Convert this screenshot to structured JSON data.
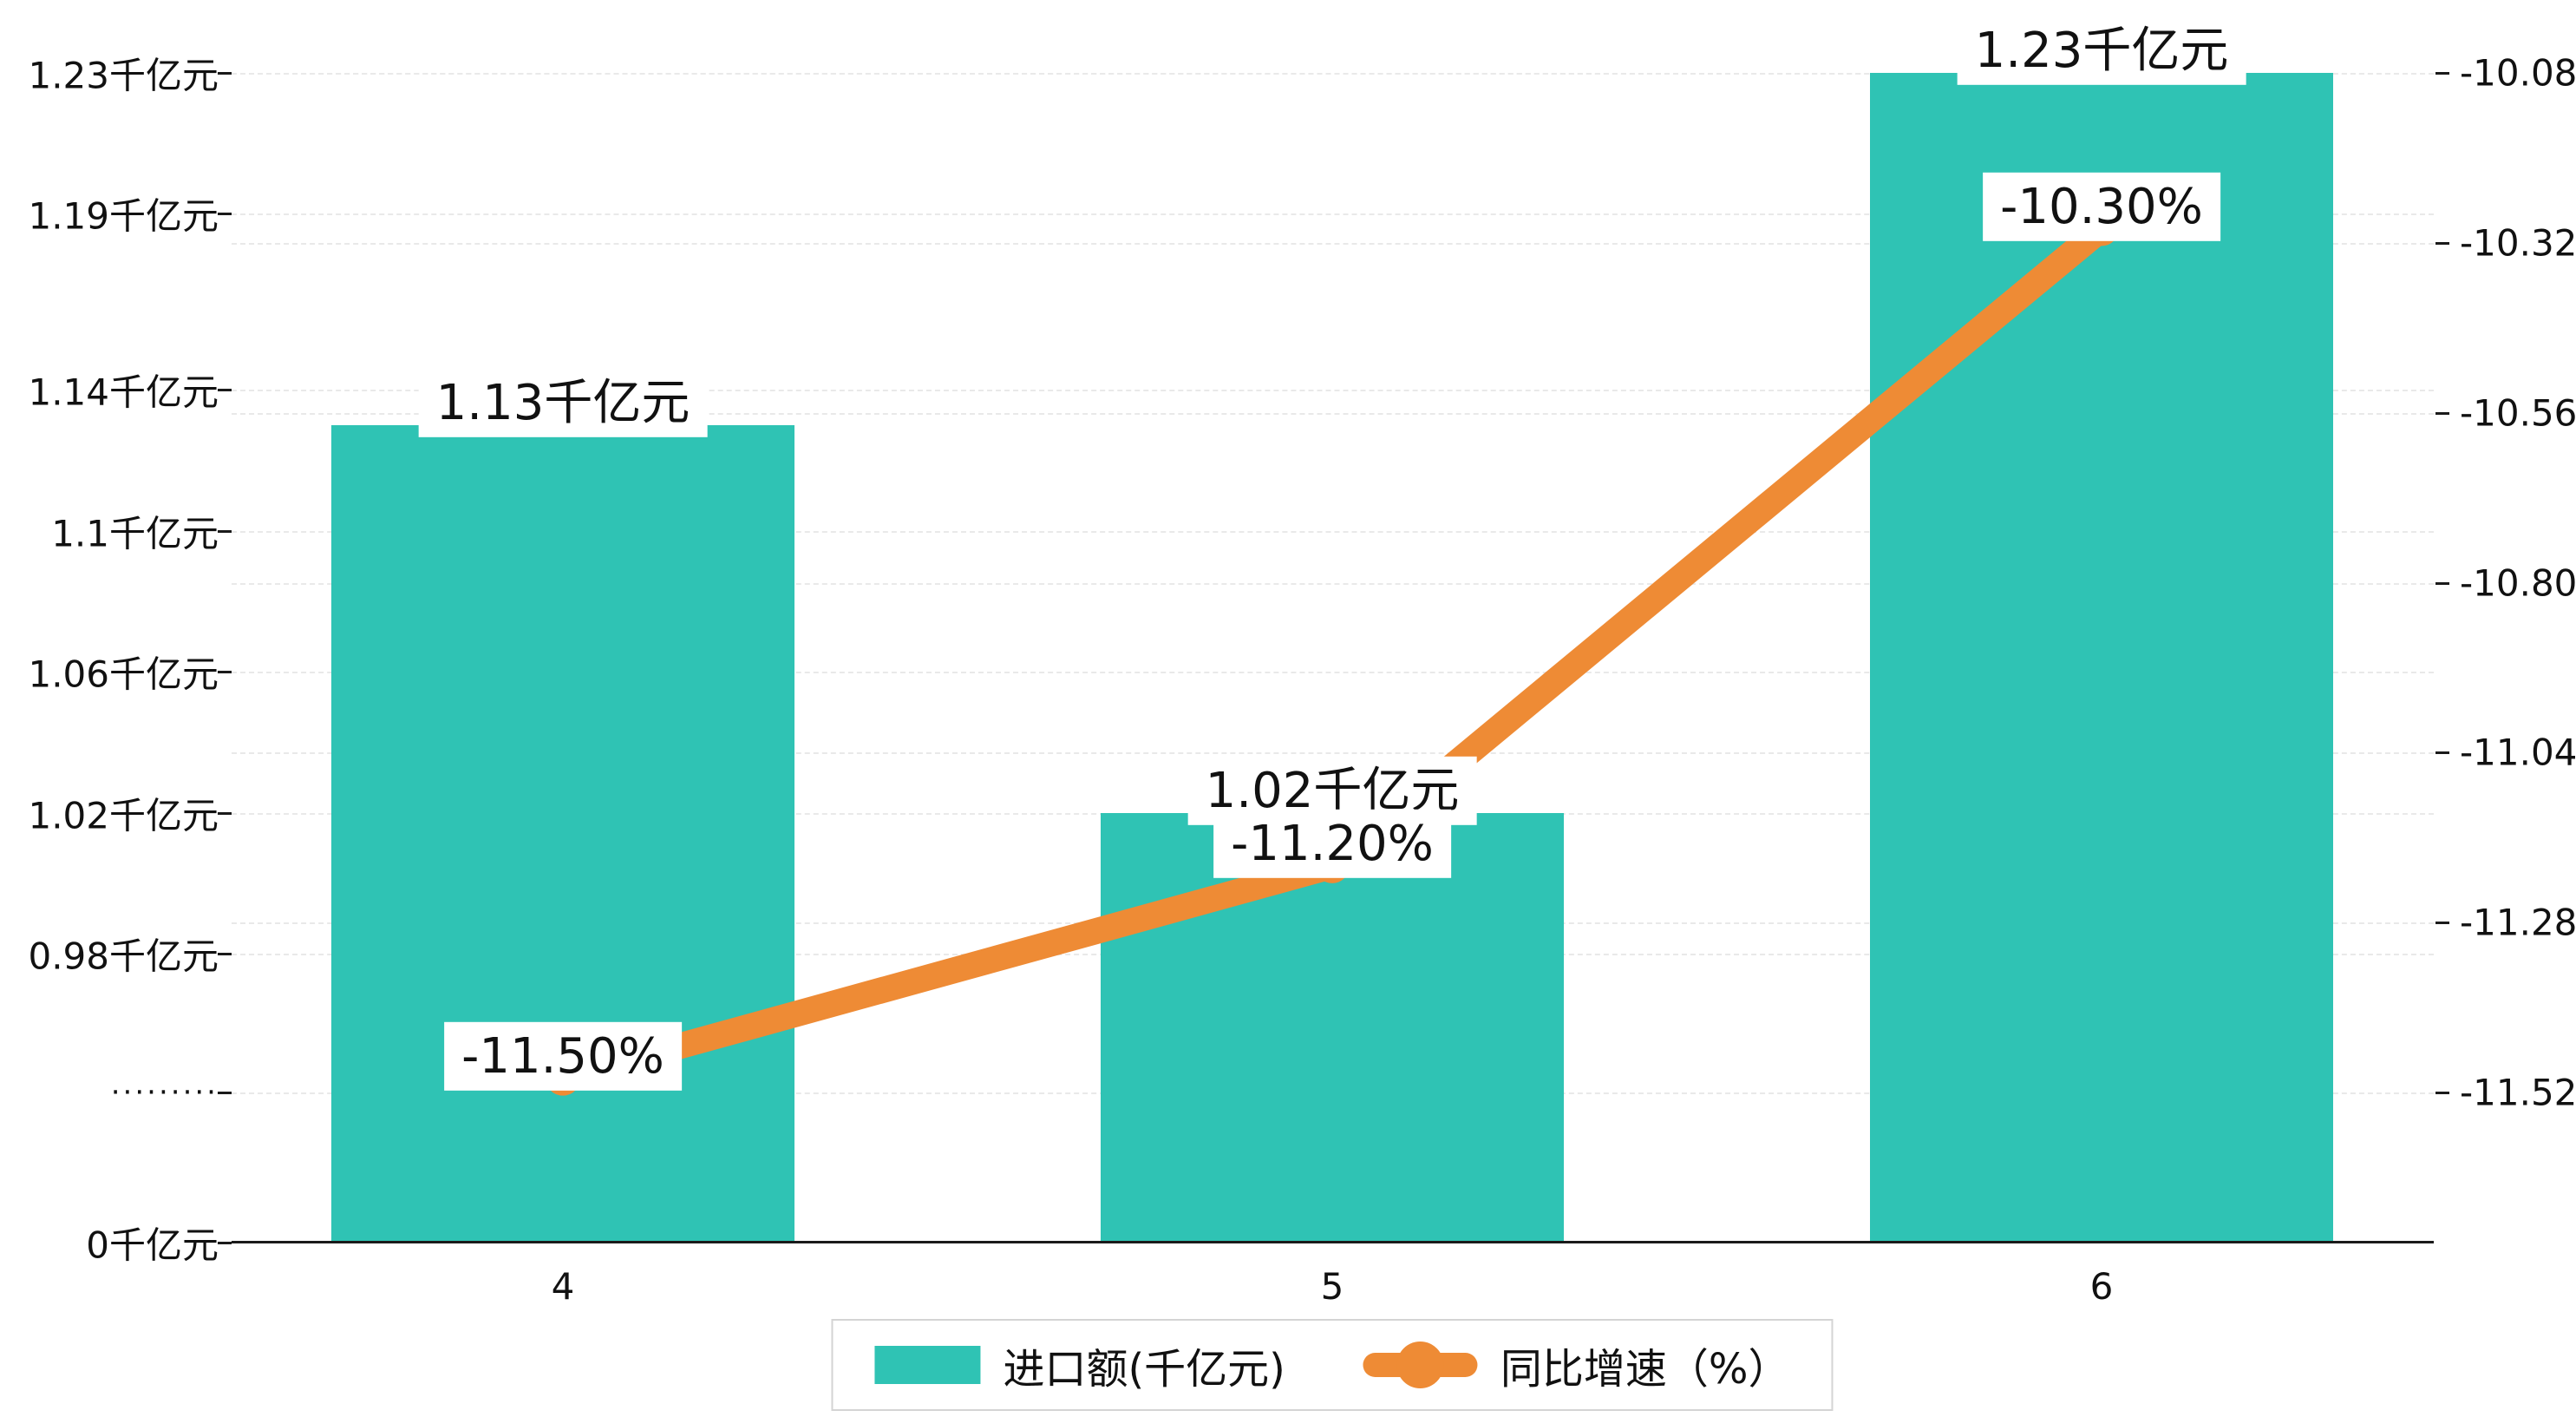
{
  "chart_data": {
    "type": "bar",
    "categories": [
      "4",
      "5",
      "6"
    ],
    "series": [
      {
        "name": "进口额(千亿元)",
        "type": "bar",
        "axis": "left",
        "values": [
          1.13,
          1.02,
          1.23
        ],
        "value_labels": [
          "1.13千亿元",
          "1.02千亿元",
          "1.23千亿元"
        ]
      },
      {
        "name": "同比增速（%）",
        "type": "line",
        "axis": "right",
        "values": [
          -11.5,
          -11.2,
          -10.3
        ],
        "value_labels": [
          "-11.50%",
          "-11.20%",
          "-10.30%"
        ]
      }
    ],
    "left_axis": {
      "unit": "千亿元",
      "broken_axis": true,
      "tick_values": [
        1.23,
        1.19,
        1.14,
        1.1,
        1.06,
        1.02,
        0.98
      ],
      "tick_labels": [
        "1.23千亿元",
        "1.19千亿元",
        "1.14千亿元",
        "1.1千亿元",
        "1.06千亿元",
        "1.02千亿元",
        "0.98千亿元"
      ],
      "break_label": "·········",
      "zero_label": "0千亿元"
    },
    "right_axis": {
      "tick_values": [
        -10.08,
        -10.32,
        -10.56,
        -10.8,
        -11.04,
        -11.28,
        -11.52
      ],
      "tick_labels": [
        "-10.08",
        "-10.32",
        "-10.56",
        "-10.80",
        "-11.04",
        "-11.28",
        "-11.52"
      ]
    },
    "legend": {
      "position": "bottom-center",
      "items": [
        {
          "label": "进口额(千亿元)",
          "marker": "bar"
        },
        {
          "label": "同比增速（%）",
          "marker": "line-dot"
        }
      ]
    },
    "grid": true
  },
  "colors": {
    "bar": "#2fc3b4",
    "line": "#ee8b35",
    "grid": "#e9e9e9",
    "axis": "#1a1a1a",
    "text": "#111111",
    "label_bg": "#ffffff",
    "legend_border": "#d4d4d4"
  }
}
